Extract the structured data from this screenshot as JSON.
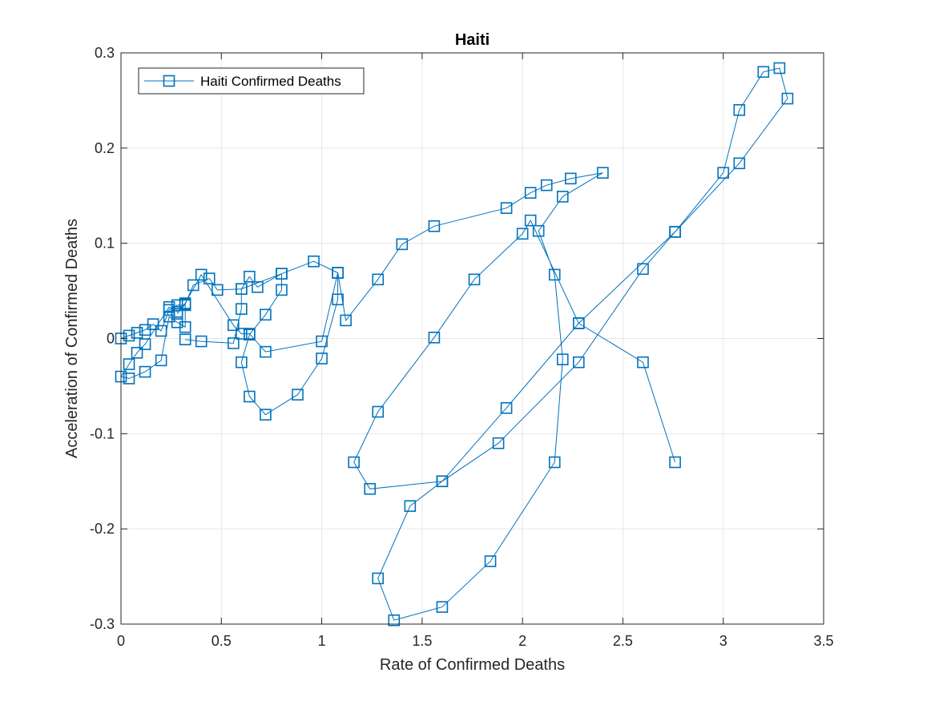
{
  "colors": {
    "series": "#0072BD",
    "axis": "#262626",
    "grid": "#e6e6e6",
    "background": "#ffffff"
  },
  "chart_data": {
    "type": "line",
    "title": "Haiti",
    "xlabel": "Rate of Confirmed Deaths",
    "ylabel": "Acceleration of Confirmed Deaths",
    "xlim": [
      0,
      3.5
    ],
    "ylim": [
      -0.3,
      0.3
    ],
    "xticks": [
      0,
      0.5,
      1,
      1.5,
      2,
      2.5,
      3,
      3.5
    ],
    "xtick_labels": [
      "0",
      "0.5",
      "1",
      "1.5",
      "2",
      "2.5",
      "3",
      "3.5"
    ],
    "yticks": [
      -0.3,
      -0.2,
      -0.1,
      0,
      0.1,
      0.2,
      0.3
    ],
    "ytick_labels": [
      "-0.3",
      "-0.2",
      "-0.1",
      "0",
      "0.1",
      "0.2",
      "0.3"
    ],
    "grid": true,
    "box": true,
    "legend_position": "top-left",
    "marker": "square",
    "series": [
      {
        "name": "Haiti Confirmed Deaths",
        "x": [
          0,
          0.04,
          0.08,
          0.12,
          0.16,
          0.2,
          0.24,
          0.28,
          0.32,
          0.32,
          0.28,
          0.24,
          0.2,
          0.12,
          0.04,
          0,
          0.04,
          0.08,
          0.12,
          0.24,
          0.28,
          0.32,
          0.4,
          0.56,
          0.6,
          0.64,
          0.72,
          1.0,
          1.08,
          1.12,
          1.28,
          1.4,
          1.56,
          1.92,
          2.04,
          2.12,
          2.24,
          2.4,
          2.2,
          2.08,
          2.16,
          2.2,
          2.16,
          1.84,
          1.6,
          1.36,
          1.28,
          1.44,
          1.6,
          1.88,
          2.28,
          2.6,
          2.76,
          3.0,
          3.08,
          3.2,
          3.28,
          3.32,
          3.08,
          2.76,
          2.28,
          1.92,
          1.6,
          1.24,
          1.16,
          1.28,
          1.56,
          1.76,
          2.0,
          2.04,
          2.28,
          2.6,
          2.76
        ],
        "y": [
          0,
          0.003,
          0.006,
          0.009,
          0.015,
          0.008,
          0.03,
          0.035,
          0.035,
          0.012,
          0.017,
          0.023,
          -0.023,
          -0.035,
          -0.042,
          -0.04,
          -0.027,
          -0.015,
          -0.006,
          0.033,
          0.028,
          0.037,
          0.067,
          0.014,
          0.005,
          0.005,
          -0.014,
          -0.003,
          0.069,
          0.019,
          0.062,
          0.099,
          0.118,
          0.137,
          0.153,
          0.161,
          0.168,
          0.174,
          0.149,
          0.113,
          0.067,
          -0.022,
          -0.13,
          -0.234,
          -0.282,
          -0.296,
          -0.252,
          -0.176,
          -0.15,
          -0.11,
          -0.025,
          0.073,
          0.112,
          0.174,
          0.24,
          0.28,
          0.284,
          0.252,
          0.184,
          0.112,
          0.016,
          -0.073,
          -0.15,
          -0.158,
          -0.13,
          -0.077,
          0.001,
          0.062,
          0.11,
          0.124,
          0.016,
          -0.025,
          -0.13
        ]
      },
      {
        "name": "",
        "x": [
          0.32,
          0.4,
          0.56,
          0.6,
          0.6,
          0.64,
          0.68,
          0.8,
          0.8,
          0.72,
          0.64,
          0.6,
          0.64,
          0.72,
          0.88,
          1.0,
          1.08,
          1.08,
          0.96,
          0.8,
          0.6,
          0.48,
          0.44,
          0.36,
          0.32,
          0.28
        ],
        "y": [
          -0.001,
          -0.003,
          -0.005,
          0.031,
          0.052,
          0.065,
          0.054,
          0.068,
          0.051,
          0.025,
          0.004,
          -0.025,
          -0.061,
          -0.08,
          -0.059,
          -0.021,
          0.041,
          0.069,
          0.081,
          0.068,
          0.052,
          0.051,
          0.063,
          0.056,
          0.036,
          0.026
        ]
      }
    ]
  }
}
